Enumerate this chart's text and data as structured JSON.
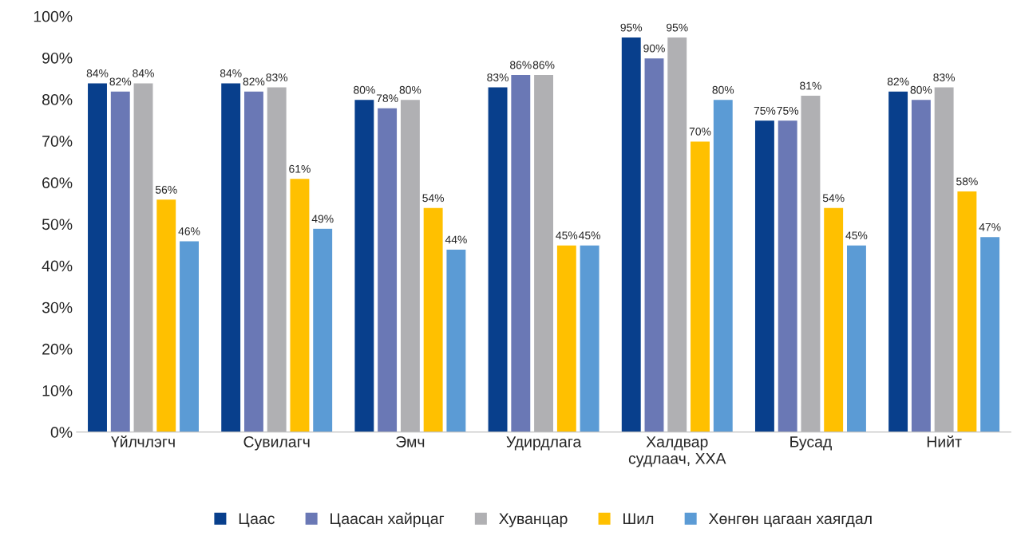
{
  "chart_data": {
    "type": "bar",
    "categories": [
      "Үйлчлэгч",
      "Сувилагч",
      "Эмч",
      "Удирдлага",
      "Халдвар\nсудлаач, ХХА",
      "Бусад",
      "Нийт"
    ],
    "series": [
      {
        "name": "Цаас",
        "color": "#083f8c",
        "values": [
          84,
          84,
          80,
          83,
          95,
          75,
          82
        ],
        "value_labels": [
          "84%",
          "84%",
          "80%",
          "83%",
          "95%",
          "75%",
          "82%"
        ]
      },
      {
        "name": "Цаасан хайрцаг",
        "color": "#6a78b5",
        "values": [
          82,
          82,
          78,
          86,
          90,
          75,
          80
        ],
        "value_labels": [
          "82%",
          "82%",
          "78%",
          "86%",
          "90%",
          "75%",
          "80%"
        ]
      },
      {
        "name": "Хуванцар",
        "color": "#b0b0b3",
        "values": [
          84,
          83,
          80,
          86,
          95,
          81,
          83
        ],
        "value_labels": [
          "84%",
          "83%",
          "80%",
          "86%",
          "95%",
          "81%",
          "83%"
        ]
      },
      {
        "name": "Шил",
        "color": "#ffc000",
        "values": [
          56,
          61,
          54,
          45,
          70,
          54,
          58
        ],
        "value_labels": [
          "56%",
          "61%",
          "54%",
          "45%",
          "70%",
          "54%",
          "58%"
        ]
      },
      {
        "name": "Хөнгөн цагаан хаягдал",
        "color": "#5b9bd5",
        "values": [
          46,
          49,
          44,
          45,
          80,
          45,
          47
        ],
        "value_labels": [
          "46%",
          "49%",
          "44%",
          "45%",
          "80%",
          "45%",
          "47%"
        ]
      }
    ],
    "ylim": [
      0,
      100
    ],
    "yticks": [
      {
        "value": 0,
        "label": "0%"
      },
      {
        "value": 10,
        "label": "10%"
      },
      {
        "value": 20,
        "label": "20%"
      },
      {
        "value": 30,
        "label": "30%"
      },
      {
        "value": 40,
        "label": "40%"
      },
      {
        "value": 50,
        "label": "50%"
      },
      {
        "value": 60,
        "label": "60%"
      },
      {
        "value": 70,
        "label": "70%"
      },
      {
        "value": 80,
        "label": "80%"
      },
      {
        "value": 90,
        "label": "90%"
      },
      {
        "value": 100,
        "label": "100%"
      }
    ],
    "grid": false,
    "legend": "bottom"
  }
}
